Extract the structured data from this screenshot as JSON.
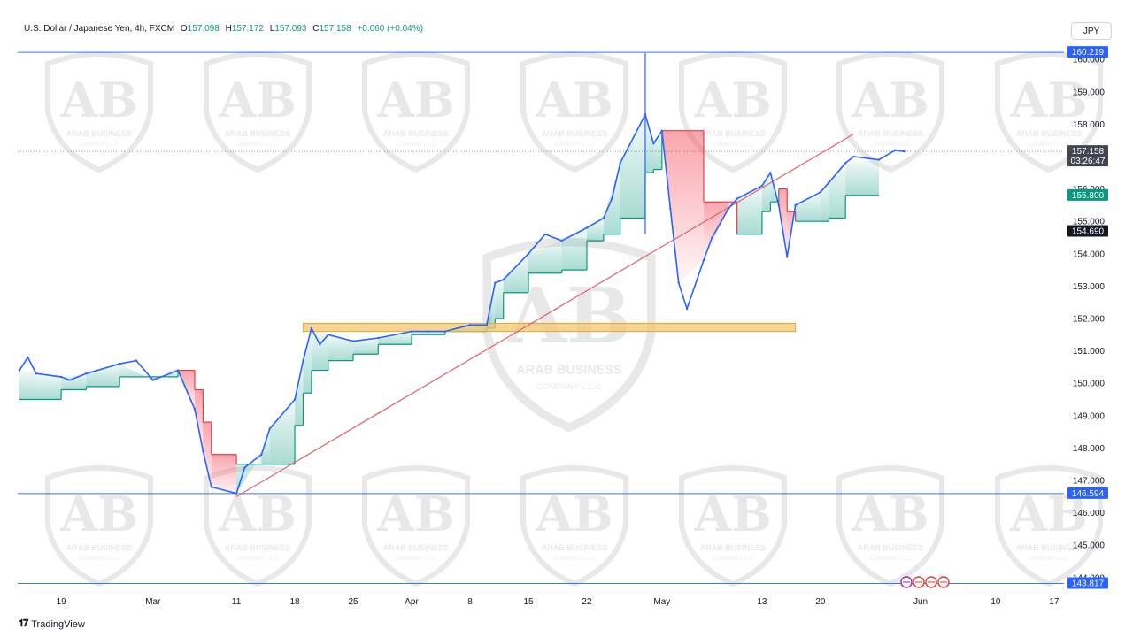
{
  "header": {
    "symbol": "U.S. Dollar / Japanese Yen, 4h, FXCM",
    "open_label": "O",
    "open": "157.098",
    "high_label": "H",
    "high": "157.172",
    "low_label": "L",
    "low": "157.093",
    "close_label": "C",
    "close": "157.158",
    "change": "+0.060 (+0.04%)"
  },
  "currency_button": "JPY",
  "footer": {
    "brand": "TradingView"
  },
  "watermark": {
    "text_top": "ARAB BUSINESS",
    "text_bottom": "COMPANY L.L.C"
  },
  "colors": {
    "candle": "#2962ff",
    "support_fill": "#089981",
    "resistance_fill": "#f23645",
    "trendline": "#e06070",
    "zone": "#f5c76a",
    "hline": "#3179f5"
  },
  "chart_data": {
    "type": "line",
    "title": "U.S. Dollar / Japanese Yen, 4h, FXCM",
    "y_ticks": [
      144.0,
      145.0,
      146.0,
      147.0,
      148.0,
      149.0,
      150.0,
      151.0,
      152.0,
      153.0,
      154.0,
      155.0,
      156.0,
      157.0,
      158.0,
      159.0,
      160.0
    ],
    "y_tick_labels": [
      "144.000",
      "145.000",
      "146.000",
      "147.000",
      "148.000",
      "149.000",
      "150.000",
      "151.000",
      "152.000",
      "153.000",
      "154.000",
      "155.000",
      "156.000",
      "157.000",
      "158.000",
      "159.000",
      "160.000"
    ],
    "ylim": [
      143.75,
      160.25
    ],
    "x_ticks": [
      "19",
      "Mar",
      "11",
      "18",
      "25",
      "Apr",
      "8",
      "15",
      "22",
      "May",
      "13",
      "20",
      "Jun",
      "10",
      "17"
    ],
    "x_tick_dates": [
      "2024-02-19",
      "2024-03-01",
      "2024-03-11",
      "2024-03-18",
      "2024-03-25",
      "2024-04-01",
      "2024-04-08",
      "2024-04-15",
      "2024-04-22",
      "2024-05-01",
      "2024-05-13",
      "2024-05-20",
      "2024-06-01",
      "2024-06-10",
      "2024-06-17"
    ],
    "price_path": [
      [
        "2024-02-14",
        150.4
      ],
      [
        "2024-02-15",
        150.8
      ],
      [
        "2024-02-16",
        150.3
      ],
      [
        "2024-02-19",
        150.2
      ],
      [
        "2024-02-20",
        150.1
      ],
      [
        "2024-02-22",
        150.3
      ],
      [
        "2024-02-26",
        150.6
      ],
      [
        "2024-02-28",
        150.7
      ],
      [
        "2024-03-01",
        150.1
      ],
      [
        "2024-03-04",
        150.4
      ],
      [
        "2024-03-06",
        149.2
      ],
      [
        "2024-03-07",
        147.9
      ],
      [
        "2024-03-08",
        146.8
      ],
      [
        "2024-03-11",
        146.6
      ],
      [
        "2024-03-12",
        147.4
      ],
      [
        "2024-03-14",
        147.8
      ],
      [
        "2024-03-15",
        148.6
      ],
      [
        "2024-03-18",
        149.5
      ],
      [
        "2024-03-19",
        150.7
      ],
      [
        "2024-03-20",
        151.7
      ],
      [
        "2024-03-21",
        151.2
      ],
      [
        "2024-03-22",
        151.5
      ],
      [
        "2024-03-25",
        151.3
      ],
      [
        "2024-03-28",
        151.4
      ],
      [
        "2024-04-01",
        151.6
      ],
      [
        "2024-04-03",
        151.6
      ],
      [
        "2024-04-05",
        151.6
      ],
      [
        "2024-04-08",
        151.8
      ],
      [
        "2024-04-10",
        151.8
      ],
      [
        "2024-04-11",
        153.1
      ],
      [
        "2024-04-12",
        153.2
      ],
      [
        "2024-04-15",
        154.0
      ],
      [
        "2024-04-17",
        154.6
      ],
      [
        "2024-04-19",
        154.4
      ],
      [
        "2024-04-22",
        154.8
      ],
      [
        "2024-04-24",
        155.1
      ],
      [
        "2024-04-25",
        155.7
      ],
      [
        "2024-04-26",
        156.8
      ],
      [
        "2024-04-29",
        158.3
      ],
      [
        "2024-04-30",
        157.4
      ],
      [
        "2024-05-01",
        157.8
      ],
      [
        "2024-05-02",
        155.4
      ],
      [
        "2024-05-03",
        153.1
      ],
      [
        "2024-05-04",
        152.3
      ],
      [
        "2024-05-06",
        153.8
      ],
      [
        "2024-05-07",
        154.5
      ],
      [
        "2024-05-09",
        155.4
      ],
      [
        "2024-05-10",
        155.7
      ],
      [
        "2024-05-13",
        156.1
      ],
      [
        "2024-05-14",
        156.5
      ],
      [
        "2024-05-15",
        155.5
      ],
      [
        "2024-05-16",
        153.9
      ],
      [
        "2024-05-17",
        155.5
      ],
      [
        "2024-05-20",
        155.9
      ],
      [
        "2024-05-21",
        156.2
      ],
      [
        "2024-05-23",
        156.8
      ],
      [
        "2024-05-24",
        157.0
      ],
      [
        "2024-05-27",
        156.9
      ],
      [
        "2024-05-29",
        157.2
      ],
      [
        "2024-05-30",
        157.16
      ]
    ],
    "trend_stop": [
      [
        "2024-02-14",
        149.5
      ],
      [
        "2024-02-16",
        149.5
      ],
      [
        "2024-02-19",
        149.8
      ],
      [
        "2024-02-22",
        149.9
      ],
      [
        "2024-02-26",
        150.2
      ],
      [
        "2024-03-01",
        150.2
      ],
      [
        "2024-03-04",
        150.4
      ],
      [
        "2024-03-06",
        149.8
      ],
      [
        "2024-03-07",
        148.8
      ],
      [
        "2024-03-08",
        147.8
      ],
      [
        "2024-03-11",
        147.5
      ],
      [
        "2024-03-14",
        147.5
      ],
      [
        "2024-03-15",
        147.5
      ],
      [
        "2024-03-18",
        148.7
      ],
      [
        "2024-03-19",
        149.7
      ],
      [
        "2024-03-20",
        150.4
      ],
      [
        "2024-03-22",
        150.7
      ],
      [
        "2024-03-25",
        150.9
      ],
      [
        "2024-03-28",
        151.2
      ],
      [
        "2024-04-01",
        151.5
      ],
      [
        "2024-04-05",
        151.6
      ],
      [
        "2024-04-08",
        151.6
      ],
      [
        "2024-04-10",
        151.7
      ],
      [
        "2024-04-11",
        152.0
      ],
      [
        "2024-04-12",
        152.8
      ],
      [
        "2024-04-15",
        153.4
      ],
      [
        "2024-04-19",
        153.5
      ],
      [
        "2024-04-22",
        154.4
      ],
      [
        "2024-04-24",
        154.6
      ],
      [
        "2024-04-26",
        155.1
      ],
      [
        "2024-04-29",
        156.5
      ],
      [
        "2024-04-30",
        156.6
      ],
      [
        "2024-05-01",
        157.8
      ],
      [
        "2024-05-03",
        157.8
      ],
      [
        "2024-05-06",
        155.6
      ],
      [
        "2024-05-09",
        155.6
      ],
      [
        "2024-05-10",
        154.6
      ],
      [
        "2024-05-13",
        155.3
      ],
      [
        "2024-05-14",
        155.6
      ],
      [
        "2024-05-15",
        156.0
      ],
      [
        "2024-05-16",
        155.3
      ],
      [
        "2024-05-17",
        155.0
      ],
      [
        "2024-05-20",
        155.0
      ],
      [
        "2024-05-21",
        155.1
      ],
      [
        "2024-05-23",
        155.8
      ],
      [
        "2024-05-27",
        155.8
      ]
    ],
    "price_labels": [
      {
        "id": "top-line",
        "value": 160.219,
        "text": "160.219",
        "style": "blue"
      },
      {
        "id": "current",
        "value": 157.158,
        "text": "157.158",
        "sub": "03:26:47",
        "style": "dark"
      },
      {
        "id": "support-stop",
        "value": 155.8,
        "text": "155.800",
        "style": "green"
      },
      {
        "id": "support-level",
        "value": 154.69,
        "text": "154.690",
        "style": "black"
      },
      {
        "id": "mid-line",
        "value": 146.594,
        "text": "146.594",
        "style": "blue"
      },
      {
        "id": "bottom-line",
        "value": 143.817,
        "text": "143.817",
        "style": "blue"
      }
    ],
    "horizontal_lines": [
      160.219,
      146.594,
      143.817
    ],
    "trendline": {
      "from": [
        "2024-03-11",
        146.5
      ],
      "to": [
        "2024-05-24",
        157.7
      ]
    },
    "support_zone": {
      "from": "2024-03-19",
      "to": "2024-05-17",
      "low": 151.6,
      "high": 151.85
    },
    "spike": {
      "date": "2024-04-29",
      "high": 160.2,
      "low": 154.6
    },
    "grid": false,
    "legend": "none"
  }
}
